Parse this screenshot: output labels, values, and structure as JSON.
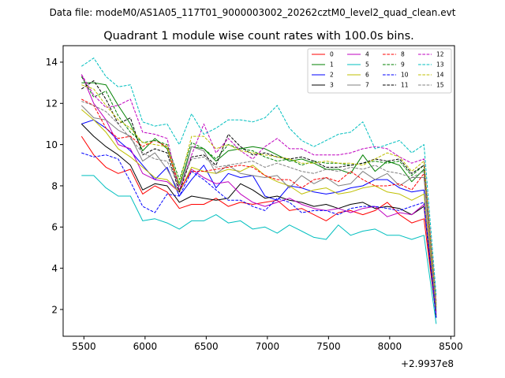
{
  "header": {
    "data_file": "Data file: modeM0/AS1A05_117T01_9000003002_20262cztM0_level2_quad_clean.evt"
  },
  "chart_data": {
    "type": "line",
    "title": "Quadrant 1 module wise count rates with 100.0s bins.",
    "xlabel": "",
    "ylabel": "",
    "x_offset_label": "+2.9937e8",
    "xlim": [
      5330,
      8530
    ],
    "ylim": [
      0.7,
      14.8
    ],
    "x_ticks": [
      5500,
      6000,
      6500,
      7000,
      7500,
      8000,
      8500
    ],
    "x_tick_labels": [
      "5500",
      "6000",
      "6500",
      "7000",
      "7500",
      "8000",
      "8500"
    ],
    "y_ticks": [
      2,
      4,
      6,
      8,
      10,
      12,
      14
    ],
    "y_tick_labels": [
      "2",
      "4",
      "6",
      "8",
      "10",
      "12",
      "14"
    ],
    "grid": false,
    "legend_position": "top-right",
    "x": [
      5480,
      5580,
      5680,
      5780,
      5880,
      5980,
      6080,
      6180,
      6280,
      6380,
      6480,
      6580,
      6680,
      6780,
      6880,
      6980,
      7080,
      7180,
      7280,
      7380,
      7480,
      7580,
      7680,
      7780,
      7880,
      7980,
      8080,
      8180,
      8280,
      8380
    ],
    "series": [
      {
        "name": "0",
        "color": "#ff0000",
        "dash": "solid",
        "values": [
          10.4,
          9.5,
          8.9,
          8.6,
          8.8,
          7.6,
          8.0,
          7.7,
          6.9,
          7.1,
          7.1,
          7.4,
          7.0,
          7.2,
          7.1,
          7.2,
          7.3,
          6.8,
          6.9,
          6.6,
          6.3,
          6.7,
          6.8,
          6.6,
          6.8,
          7.2,
          6.6,
          6.2,
          6.4,
          1.7
        ]
      },
      {
        "name": "1",
        "color": "#008000",
        "dash": "solid",
        "values": [
          13.0,
          13.0,
          12.9,
          11.9,
          11.0,
          9.7,
          10.3,
          9.8,
          8.0,
          9.9,
          9.8,
          9.2,
          9.7,
          9.8,
          9.9,
          9.8,
          9.5,
          9.2,
          9.3,
          9.1,
          8.8,
          8.8,
          8.6,
          9.5,
          8.7,
          9.2,
          9.0,
          8.2,
          8.8,
          1.9
        ]
      },
      {
        "name": "2",
        "color": "#0000ff",
        "dash": "solid",
        "values": [
          11.0,
          11.2,
          10.8,
          10.2,
          9.7,
          9.0,
          8.3,
          8.9,
          7.5,
          8.3,
          9.0,
          7.9,
          8.6,
          8.4,
          8.5,
          7.5,
          7.3,
          8.0,
          7.9,
          7.7,
          7.6,
          7.7,
          7.9,
          8.0,
          8.3,
          8.3,
          7.9,
          7.7,
          7.8,
          1.6
        ]
      },
      {
        "name": "3",
        "color": "#000000",
        "dash": "solid",
        "values": [
          11.0,
          10.4,
          9.9,
          9.5,
          9.0,
          7.8,
          8.1,
          8.0,
          7.2,
          7.5,
          7.4,
          7.3,
          7.4,
          8.1,
          7.8,
          7.4,
          7.5,
          7.3,
          7.2,
          7.0,
          7.1,
          6.9,
          7.1,
          7.2,
          6.9,
          7.0,
          6.9,
          6.6,
          7.0,
          1.6
        ]
      },
      {
        "name": "4",
        "color": "#bf00bf",
        "dash": "solid",
        "values": [
          13.4,
          12.0,
          11.2,
          10.0,
          9.8,
          8.6,
          8.3,
          8.2,
          7.7,
          8.8,
          8.4,
          8.1,
          8.2,
          7.6,
          7.2,
          7.0,
          7.2,
          7.4,
          7.1,
          6.9,
          6.8,
          6.9,
          6.7,
          6.9,
          7.0,
          6.5,
          6.7,
          6.6,
          7.1,
          1.8
        ]
      },
      {
        "name": "5",
        "color": "#00bfbf",
        "dash": "solid",
        "values": [
          8.5,
          8.5,
          7.9,
          7.5,
          7.5,
          6.3,
          6.4,
          6.2,
          5.9,
          6.3,
          6.3,
          6.6,
          6.2,
          6.3,
          5.9,
          6.0,
          5.7,
          6.1,
          5.8,
          5.5,
          5.4,
          6.1,
          5.6,
          5.8,
          5.9,
          5.6,
          5.6,
          5.4,
          5.6,
          1.3
        ]
      },
      {
        "name": "6",
        "color": "#bfbf00",
        "dash": "solid",
        "values": [
          11.7,
          11.2,
          10.6,
          9.8,
          9.4,
          8.9,
          8.4,
          8.3,
          7.7,
          8.9,
          8.7,
          8.6,
          8.8,
          8.7,
          9.0,
          8.5,
          8.2,
          8.0,
          7.6,
          7.8,
          7.9,
          7.6,
          7.7,
          7.9,
          8.0,
          7.7,
          7.6,
          7.3,
          7.6,
          2.1
        ]
      },
      {
        "name": "7",
        "color": "#808080",
        "dash": "solid",
        "values": [
          11.9,
          11.3,
          11.2,
          10.7,
          10.4,
          9.2,
          9.6,
          8.8,
          7.7,
          9.9,
          9.7,
          8.6,
          9.0,
          8.6,
          8.5,
          8.4,
          8.5,
          7.9,
          8.5,
          8.1,
          8.4,
          8.0,
          8.1,
          8.7,
          8.3,
          8.6,
          8.0,
          8.4,
          8.4,
          2.0
        ]
      },
      {
        "name": "8",
        "color": "#ff0000",
        "dash": "dashed",
        "values": [
          12.2,
          11.9,
          10.8,
          10.3,
          10.4,
          9.9,
          10.2,
          9.9,
          7.8,
          8.7,
          8.7,
          8.8,
          8.9,
          9.0,
          8.9,
          8.5,
          8.3,
          8.3,
          7.9,
          8.3,
          8.4,
          8.2,
          8.7,
          8.3,
          8.0,
          8.0,
          8.1,
          7.8,
          8.6,
          2.2
        ]
      },
      {
        "name": "9",
        "color": "#008000",
        "dash": "dashed",
        "values": [
          13.3,
          12.3,
          12.6,
          11.4,
          10.6,
          10.1,
          10.2,
          10.0,
          8.3,
          10.1,
          9.8,
          9.3,
          10.0,
          9.8,
          9.7,
          9.4,
          9.2,
          9.3,
          9.0,
          9.2,
          9.1,
          9.1,
          9.0,
          9.1,
          9.2,
          9.1,
          9.2,
          8.5,
          9.0,
          2.1
        ]
      },
      {
        "name": "10",
        "color": "#0000ff",
        "dash": "dashed",
        "values": [
          9.6,
          9.4,
          9.5,
          9.3,
          8.2,
          7.0,
          6.7,
          7.6,
          7.5,
          8.7,
          8.3,
          7.8,
          7.3,
          7.3,
          7.0,
          6.8,
          7.4,
          7.2,
          6.7,
          6.8,
          6.8,
          6.6,
          6.9,
          7.0,
          7.0,
          6.9,
          6.8,
          7.0,
          7.2,
          1.6
        ]
      },
      {
        "name": "11",
        "color": "#000000",
        "dash": "dashed",
        "values": [
          12.7,
          13.1,
          12.2,
          11.0,
          11.3,
          9.5,
          9.8,
          9.6,
          7.7,
          9.4,
          9.5,
          9.0,
          10.5,
          9.9,
          9.5,
          9.6,
          9.4,
          9.3,
          9.4,
          9.2,
          8.9,
          8.9,
          9.0,
          9.1,
          9.3,
          9.2,
          9.3,
          8.6,
          9.0,
          2.3
        ]
      },
      {
        "name": "12",
        "color": "#bf00bf",
        "dash": "dashed",
        "values": [
          13.4,
          12.4,
          11.8,
          11.9,
          12.2,
          10.6,
          10.5,
          10.3,
          7.8,
          9.5,
          11.0,
          9.6,
          10.3,
          9.7,
          9.3,
          9.9,
          10.3,
          9.8,
          9.8,
          9.5,
          9.5,
          9.5,
          9.6,
          9.8,
          9.9,
          9.8,
          9.4,
          9.1,
          9.3,
          2.4
        ]
      },
      {
        "name": "13",
        "color": "#00bfbf",
        "dash": "dashed",
        "values": [
          13.8,
          14.2,
          13.3,
          12.8,
          12.9,
          11.1,
          10.9,
          11.0,
          10.0,
          11.5,
          10.5,
          10.8,
          11.2,
          11.2,
          11.1,
          11.3,
          11.9,
          10.8,
          10.2,
          9.9,
          10.2,
          10.5,
          10.6,
          11.1,
          9.8,
          10.0,
          10.2,
          9.6,
          10.0,
          2.7
        ]
      },
      {
        "name": "14",
        "color": "#bfbf00",
        "dash": "dashed",
        "values": [
          12.9,
          12.7,
          11.9,
          11.2,
          10.8,
          10.1,
          10.0,
          9.9,
          8.1,
          10.4,
          10.4,
          9.8,
          10.0,
          9.7,
          9.6,
          9.5,
          9.4,
          9.3,
          9.1,
          9.1,
          9.2,
          9.1,
          9.1,
          9.0,
          9.3,
          9.6,
          9.4,
          8.7,
          9.2,
          2.2
        ]
      },
      {
        "name": "15",
        "color": "#808080",
        "dash": "dashed",
        "values": [
          12.1,
          11.9,
          11.6,
          11.0,
          10.3,
          9.6,
          9.3,
          9.2,
          8.0,
          9.3,
          9.4,
          8.9,
          9.0,
          9.1,
          9.2,
          8.9,
          9.1,
          8.9,
          8.7,
          8.6,
          8.8,
          8.7,
          8.9,
          8.8,
          9.0,
          8.7,
          8.6,
          8.4,
          8.7,
          2.0
        ]
      }
    ]
  }
}
